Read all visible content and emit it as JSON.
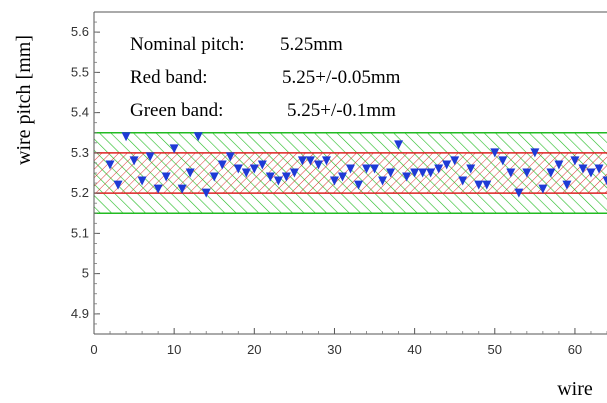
{
  "chart_data": {
    "type": "scatter",
    "xlabel": "wire",
    "ylabel": "wire pitch [mm]",
    "xlim": [
      0,
      64
    ],
    "ylim": [
      4.85,
      5.65
    ],
    "xticks": [
      0,
      10,
      20,
      30,
      40,
      50,
      60
    ],
    "yticks": [
      4.9,
      5,
      5.1,
      5.2,
      5.3,
      5.4,
      5.5,
      5.6
    ],
    "x_tick_labels": [
      "0",
      "10",
      "20",
      "30",
      "40",
      "50",
      "60"
    ],
    "y_tick_labels": [
      "4.9",
      "5",
      "5.1",
      "5.2",
      "5.3",
      "5.4",
      "5.5",
      "5.6"
    ],
    "grid": false,
    "annotations": [
      {
        "label": "Nominal pitch:",
        "value": "5.25mm"
      },
      {
        "label": "Red band:",
        "value": "5.25+/-0.05mm"
      },
      {
        "label": "Green band:",
        "value": "5.25+/-0.1mm"
      }
    ],
    "bands": [
      {
        "color": "#22bb22",
        "low": 5.15,
        "high": 5.35,
        "hatch": "diagonal"
      },
      {
        "color": "#dd2222",
        "low": 5.2,
        "high": 5.3,
        "hatch": "diagonal"
      }
    ],
    "marker_color": "#1e3ad6",
    "marker": "triangle-down",
    "x": [
      2,
      3,
      4,
      5,
      6,
      7,
      8,
      9,
      10,
      11,
      12,
      13,
      14,
      15,
      16,
      17,
      18,
      19,
      20,
      21,
      22,
      23,
      24,
      25,
      26,
      27,
      28,
      29,
      30,
      31,
      32,
      33,
      34,
      35,
      36,
      37,
      38,
      39,
      40,
      41,
      42,
      43,
      44,
      45,
      46,
      47,
      48,
      49,
      50,
      51,
      52,
      53,
      54,
      55,
      56,
      57,
      58,
      59,
      60,
      61,
      62,
      63,
      64
    ],
    "y": [
      5.27,
      5.22,
      5.34,
      5.28,
      5.23,
      5.29,
      5.21,
      5.24,
      5.31,
      5.21,
      5.25,
      5.34,
      5.2,
      5.24,
      5.27,
      5.29,
      5.26,
      5.25,
      5.26,
      5.27,
      5.24,
      5.23,
      5.24,
      5.25,
      5.28,
      5.28,
      5.27,
      5.28,
      5.23,
      5.24,
      5.26,
      5.22,
      5.26,
      5.26,
      5.23,
      5.25,
      5.32,
      5.24,
      5.25,
      5.25,
      5.25,
      5.26,
      5.27,
      5.28,
      5.23,
      5.26,
      5.22,
      5.22,
      5.3,
      5.28,
      5.25,
      5.2,
      5.25,
      5.3,
      5.21,
      5.25,
      5.27,
      5.22,
      5.28,
      5.26,
      5.25,
      5.26,
      5.23
    ]
  }
}
